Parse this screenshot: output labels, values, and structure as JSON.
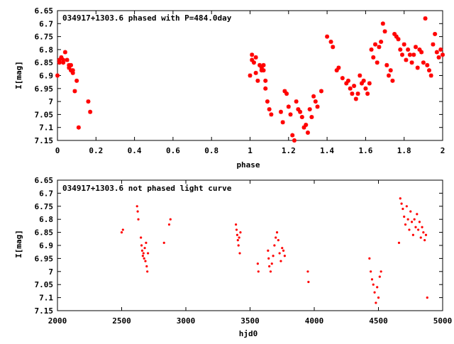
{
  "colors": {
    "points": "#ff0000",
    "axes": "#000000",
    "background": "#ffffff"
  },
  "chart_data": [
    {
      "type": "scatter",
      "title": "034917+1303.6 phased with P=484.0day",
      "xlabel": "phase",
      "ylabel": "I[mag]",
      "xlim": [
        0,
        2
      ],
      "ylim": [
        6.65,
        7.15
      ],
      "y_inverted": true,
      "grid": false,
      "legend": "none",
      "marker": "star",
      "x_ticks": [
        "0",
        "0.2",
        "0.4",
        "0.6",
        "0.8",
        "1",
        "1.2",
        "1.4",
        "1.6",
        "1.8",
        "2"
      ],
      "y_ticks": [
        "6.65",
        "6.7",
        "6.75",
        "6.8",
        "6.85",
        "6.9",
        "6.95",
        "7",
        "7.05",
        "7.1",
        "7.15"
      ],
      "x": [
        0.0,
        0.01,
        0.01,
        0.02,
        0.03,
        0.03,
        0.04,
        0.05,
        0.06,
        0.06,
        0.07,
        0.07,
        0.08,
        0.08,
        0.09,
        0.1,
        0.11,
        0.16,
        0.17,
        1.0,
        1.01,
        1.01,
        1.02,
        1.03,
        1.03,
        1.04,
        1.05,
        1.06,
        1.06,
        1.07,
        1.07,
        1.08,
        1.08,
        1.09,
        1.1,
        1.11,
        1.16,
        1.17,
        1.18,
        1.19,
        1.2,
        1.21,
        1.22,
        1.23,
        1.24,
        1.25,
        1.26,
        1.27,
        1.28,
        1.29,
        1.3,
        1.31,
        1.32,
        1.33,
        1.34,
        1.35,
        1.37,
        1.4,
        1.42,
        1.43,
        1.45,
        1.46,
        1.48,
        1.5,
        1.51,
        1.52,
        1.53,
        1.54,
        1.55,
        1.56,
        1.57,
        1.58,
        1.59,
        1.6,
        1.61,
        1.62,
        1.63,
        1.64,
        1.65,
        1.66,
        1.67,
        1.68,
        1.69,
        1.7,
        1.71,
        1.72,
        1.73,
        1.74,
        1.75,
        1.76,
        1.77,
        1.78,
        1.79,
        1.8,
        1.81,
        1.82,
        1.83,
        1.84,
        1.85,
        1.86,
        1.87,
        1.88,
        1.89,
        1.9,
        1.91,
        1.92,
        1.93,
        1.94,
        1.95,
        1.96,
        1.97,
        1.98,
        1.99,
        2.0
      ],
      "y": [
        6.9,
        6.84,
        6.85,
        6.83,
        6.84,
        6.85,
        6.81,
        6.84,
        6.86,
        6.87,
        6.88,
        6.86,
        6.89,
        6.88,
        6.96,
        6.92,
        7.1,
        7.0,
        7.04,
        6.9,
        6.84,
        6.82,
        6.85,
        6.83,
        6.89,
        6.92,
        6.86,
        6.88,
        6.87,
        6.88,
        6.86,
        6.95,
        6.92,
        7.0,
        7.03,
        7.05,
        7.04,
        7.08,
        6.96,
        6.97,
        7.02,
        7.05,
        7.13,
        7.15,
        7.0,
        7.03,
        7.04,
        7.06,
        7.1,
        7.09,
        7.12,
        7.03,
        7.06,
        6.98,
        7.0,
        7.02,
        6.96,
        6.75,
        6.77,
        6.79,
        6.88,
        6.87,
        6.91,
        6.93,
        6.92,
        6.95,
        6.97,
        6.94,
        6.99,
        6.97,
        6.9,
        6.93,
        6.92,
        6.95,
        6.97,
        6.93,
        6.8,
        6.83,
        6.78,
        6.85,
        6.79,
        6.77,
        6.7,
        6.73,
        6.86,
        6.9,
        6.88,
        6.92,
        6.74,
        6.75,
        6.76,
        6.8,
        6.82,
        6.78,
        6.84,
        6.8,
        6.82,
        6.85,
        6.82,
        6.79,
        6.87,
        6.8,
        6.81,
        6.85,
        6.68,
        6.86,
        6.88,
        6.9,
        6.78,
        6.74,
        6.81,
        6.83,
        6.8,
        6.82
      ],
      "annotations": []
    },
    {
      "type": "scatter",
      "title": "034917+1303.6 not phased light curve",
      "xlabel": "hjd0",
      "ylabel": "I[mag]",
      "xlim": [
        2000,
        5000
      ],
      "ylim": [
        6.65,
        7.15
      ],
      "y_inverted": true,
      "grid": false,
      "legend": "none",
      "marker": "dot",
      "x_ticks": [
        "2000",
        "2500",
        "3000",
        "3500",
        "4000",
        "4500",
        "5000"
      ],
      "y_ticks": [
        "6.65",
        "6.7",
        "6.75",
        "6.8",
        "6.85",
        "6.9",
        "6.95",
        "7",
        "7.05",
        "7.1",
        "7.15"
      ],
      "x": [
        2500,
        2510,
        2620,
        2625,
        2630,
        2650,
        2655,
        2660,
        2665,
        2670,
        2675,
        2680,
        2685,
        2690,
        2695,
        2700,
        2705,
        2830,
        2870,
        2880,
        3390,
        3395,
        3400,
        3405,
        3410,
        3415,
        3420,
        3425,
        3560,
        3565,
        3640,
        3645,
        3650,
        3660,
        3670,
        3680,
        3690,
        3700,
        3710,
        3720,
        3730,
        3740,
        3750,
        3760,
        3770,
        3950,
        3955,
        4430,
        4440,
        4450,
        4460,
        4470,
        4480,
        4490,
        4500,
        4510,
        4520,
        4660,
        4670,
        4680,
        4690,
        4700,
        4710,
        4720,
        4730,
        4740,
        4750,
        4760,
        4770,
        4780,
        4790,
        4800,
        4810,
        4820,
        4830,
        4840,
        4850,
        4860,
        4870,
        4880
      ],
      "y": [
        6.85,
        6.84,
        6.75,
        6.77,
        6.8,
        6.87,
        6.9,
        6.92,
        6.94,
        6.93,
        6.95,
        6.91,
        6.96,
        6.89,
        6.98,
        7.0,
        6.93,
        6.89,
        6.82,
        6.8,
        6.82,
        6.84,
        6.86,
        6.88,
        6.9,
        6.87,
        6.93,
        6.85,
        6.97,
        7.0,
        6.92,
        6.95,
        6.98,
        7.0,
        6.97,
        6.94,
        6.9,
        6.87,
        6.85,
        6.88,
        6.93,
        6.96,
        6.91,
        6.92,
        6.94,
        7.0,
        7.04,
        6.95,
        7.0,
        7.03,
        7.05,
        7.08,
        7.12,
        7.06,
        7.1,
        7.02,
        7.0,
        6.89,
        6.72,
        6.74,
        6.76,
        6.79,
        6.82,
        6.75,
        6.8,
        6.84,
        6.77,
        6.81,
        6.86,
        6.8,
        6.83,
        6.78,
        6.84,
        6.81,
        6.87,
        6.83,
        6.85,
        6.88,
        6.86,
        7.1
      ],
      "annotations": []
    }
  ]
}
